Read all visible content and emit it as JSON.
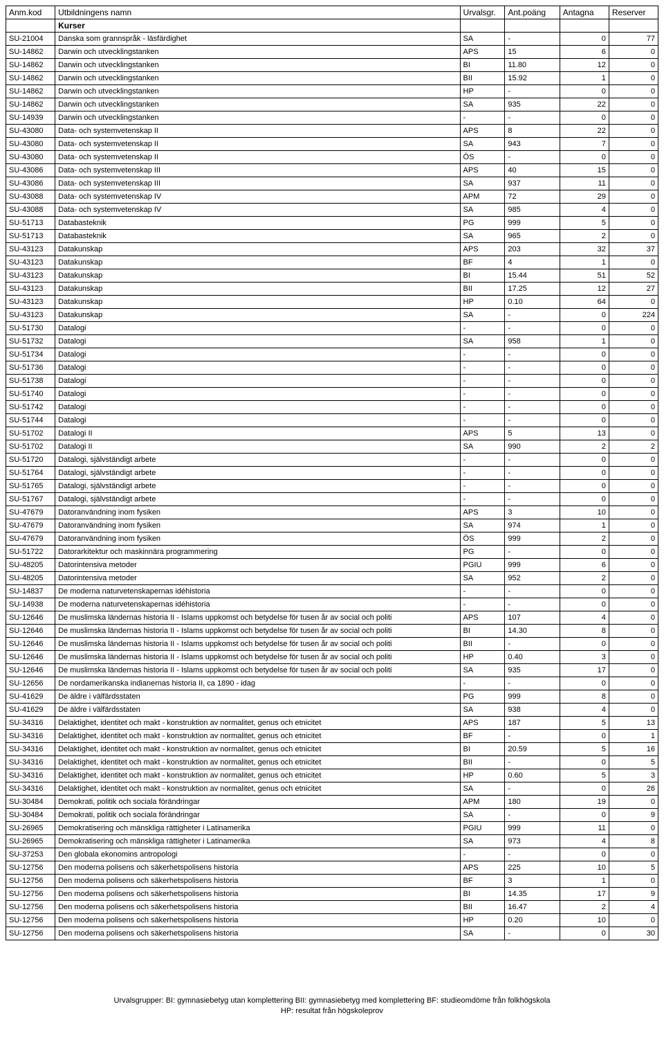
{
  "columns": {
    "kod": "Anm.kod",
    "namn": "Utbildningens namn",
    "urv": "Urvalsgr.",
    "poang": "Ant.poäng",
    "ant": "Antagna",
    "res": "Reserver"
  },
  "section": "Kurser",
  "footer": {
    "line1": "Urvalsgrupper:  BI: gymnasiebetyg utan komplettering   BII: gymnasiebetyg med komplettering   BF: studieomdöme från folkhögskola",
    "line2": "HP: resultat från högskoleprov"
  },
  "rows": [
    {
      "kod": "SU-21004",
      "namn": "Danska som grannspråk - läsfärdighet",
      "urv": "SA",
      "poang": "-",
      "ant": "0",
      "res": "77"
    },
    {
      "kod": "SU-14862",
      "namn": "Darwin och utvecklingstanken",
      "urv": "APS",
      "poang": "15",
      "ant": "6",
      "res": "0"
    },
    {
      "kod": "SU-14862",
      "namn": "Darwin och utvecklingstanken",
      "urv": "BI",
      "poang": "11.80",
      "ant": "12",
      "res": "0"
    },
    {
      "kod": "SU-14862",
      "namn": "Darwin och utvecklingstanken",
      "urv": "BII",
      "poang": "15.92",
      "ant": "1",
      "res": "0"
    },
    {
      "kod": "SU-14862",
      "namn": "Darwin och utvecklingstanken",
      "urv": "HP",
      "poang": "-",
      "ant": "0",
      "res": "0"
    },
    {
      "kod": "SU-14862",
      "namn": "Darwin och utvecklingstanken",
      "urv": "SA",
      "poang": "935",
      "ant": "22",
      "res": "0"
    },
    {
      "kod": "SU-14939",
      "namn": "Darwin och utvecklingstanken",
      "urv": "-",
      "poang": "-",
      "ant": "0",
      "res": "0"
    },
    {
      "kod": "SU-43080",
      "namn": "Data- och systemvetenskap II",
      "urv": "APS",
      "poang": "8",
      "ant": "22",
      "res": "0"
    },
    {
      "kod": "SU-43080",
      "namn": "Data- och systemvetenskap II",
      "urv": "SA",
      "poang": "943",
      "ant": "7",
      "res": "0"
    },
    {
      "kod": "SU-43080",
      "namn": "Data- och systemvetenskap II",
      "urv": "ÖS",
      "poang": "-",
      "ant": "0",
      "res": "0"
    },
    {
      "kod": "SU-43086",
      "namn": "Data- och systemvetenskap III",
      "urv": "APS",
      "poang": "40",
      "ant": "15",
      "res": "0"
    },
    {
      "kod": "SU-43086",
      "namn": "Data- och systemvetenskap III",
      "urv": "SA",
      "poang": "937",
      "ant": "11",
      "res": "0"
    },
    {
      "kod": "SU-43088",
      "namn": "Data- och systemvetenskap IV",
      "urv": "APM",
      "poang": "72",
      "ant": "29",
      "res": "0"
    },
    {
      "kod": "SU-43088",
      "namn": "Data- och systemvetenskap IV",
      "urv": "SA",
      "poang": "985",
      "ant": "4",
      "res": "0"
    },
    {
      "kod": "SU-51713",
      "namn": "Databasteknik",
      "urv": "PG",
      "poang": "999",
      "ant": "5",
      "res": "0"
    },
    {
      "kod": "SU-51713",
      "namn": "Databasteknik",
      "urv": "SA",
      "poang": "965",
      "ant": "2",
      "res": "0"
    },
    {
      "kod": "SU-43123",
      "namn": "Datakunskap",
      "urv": "APS",
      "poang": "203",
      "ant": "32",
      "res": "37"
    },
    {
      "kod": "SU-43123",
      "namn": "Datakunskap",
      "urv": "BF",
      "poang": "4",
      "ant": "1",
      "res": "0"
    },
    {
      "kod": "SU-43123",
      "namn": "Datakunskap",
      "urv": "BI",
      "poang": "15.44",
      "ant": "51",
      "res": "52"
    },
    {
      "kod": "SU-43123",
      "namn": "Datakunskap",
      "urv": "BII",
      "poang": "17.25",
      "ant": "12",
      "res": "27"
    },
    {
      "kod": "SU-43123",
      "namn": "Datakunskap",
      "urv": "HP",
      "poang": "0.10",
      "ant": "64",
      "res": "0"
    },
    {
      "kod": "SU-43123",
      "namn": "Datakunskap",
      "urv": "SA",
      "poang": "-",
      "ant": "0",
      "res": "224"
    },
    {
      "kod": "SU-51730",
      "namn": "Datalogi",
      "urv": "-",
      "poang": "-",
      "ant": "0",
      "res": "0"
    },
    {
      "kod": "SU-51732",
      "namn": "Datalogi",
      "urv": "SA",
      "poang": "958",
      "ant": "1",
      "res": "0"
    },
    {
      "kod": "SU-51734",
      "namn": "Datalogi",
      "urv": "-",
      "poang": "-",
      "ant": "0",
      "res": "0"
    },
    {
      "kod": "SU-51736",
      "namn": "Datalogi",
      "urv": "-",
      "poang": "-",
      "ant": "0",
      "res": "0"
    },
    {
      "kod": "SU-51738",
      "namn": "Datalogi",
      "urv": "-",
      "poang": "-",
      "ant": "0",
      "res": "0"
    },
    {
      "kod": "SU-51740",
      "namn": "Datalogi",
      "urv": "-",
      "poang": "-",
      "ant": "0",
      "res": "0"
    },
    {
      "kod": "SU-51742",
      "namn": "Datalogi",
      "urv": "-",
      "poang": "-",
      "ant": "0",
      "res": "0"
    },
    {
      "kod": "SU-51744",
      "namn": "Datalogi",
      "urv": "-",
      "poang": "-",
      "ant": "0",
      "res": "0"
    },
    {
      "kod": "SU-51702",
      "namn": "Datalogi II",
      "urv": "APS",
      "poang": "5",
      "ant": "13",
      "res": "0"
    },
    {
      "kod": "SU-51702",
      "namn": "Datalogi II",
      "urv": "SA",
      "poang": "990",
      "ant": "2",
      "res": "2"
    },
    {
      "kod": "SU-51720",
      "namn": "Datalogi, självständigt arbete",
      "urv": "-",
      "poang": "-",
      "ant": "0",
      "res": "0"
    },
    {
      "kod": "SU-51764",
      "namn": "Datalogi, självständigt arbete",
      "urv": "-",
      "poang": "-",
      "ant": "0",
      "res": "0"
    },
    {
      "kod": "SU-51765",
      "namn": "Datalogi, självständigt arbete",
      "urv": "-",
      "poang": "-",
      "ant": "0",
      "res": "0"
    },
    {
      "kod": "SU-51767",
      "namn": "Datalogi, självständigt arbete",
      "urv": "-",
      "poang": "-",
      "ant": "0",
      "res": "0"
    },
    {
      "kod": "SU-47679",
      "namn": "Datoranvändning inom fysiken",
      "urv": "APS",
      "poang": "3",
      "ant": "10",
      "res": "0"
    },
    {
      "kod": "SU-47679",
      "namn": "Datoranvändning inom fysiken",
      "urv": "SA",
      "poang": "974",
      "ant": "1",
      "res": "0"
    },
    {
      "kod": "SU-47679",
      "namn": "Datoranvändning inom fysiken",
      "urv": "ÖS",
      "poang": "999",
      "ant": "2",
      "res": "0"
    },
    {
      "kod": "SU-51722",
      "namn": "Datorarkitektur och maskinnära programmering",
      "urv": "PG",
      "poang": "-",
      "ant": "0",
      "res": "0"
    },
    {
      "kod": "SU-48205",
      "namn": "Datorintensiva metoder",
      "urv": "PGIU",
      "poang": "999",
      "ant": "6",
      "res": "0"
    },
    {
      "kod": "SU-48205",
      "namn": "Datorintensiva metoder",
      "urv": "SA",
      "poang": "952",
      "ant": "2",
      "res": "0"
    },
    {
      "kod": "SU-14837",
      "namn": "De moderna naturvetenskapernas idéhistoria",
      "urv": "-",
      "poang": "-",
      "ant": "0",
      "res": "0"
    },
    {
      "kod": "SU-14938",
      "namn": "De moderna naturvetenskapernas idéhistoria",
      "urv": "-",
      "poang": "-",
      "ant": "0",
      "res": "0"
    },
    {
      "kod": "SU-12646",
      "namn": "De muslimska ländernas historia II - Islams uppkomst och betydelse för tusen år av social och politi",
      "urv": "APS",
      "poang": "107",
      "ant": "4",
      "res": "0"
    },
    {
      "kod": "SU-12646",
      "namn": "De muslimska ländernas historia II - Islams uppkomst och betydelse för tusen år av social och politi",
      "urv": "BI",
      "poang": "14.30",
      "ant": "8",
      "res": "0"
    },
    {
      "kod": "SU-12646",
      "namn": "De muslimska ländernas historia II - Islams uppkomst och betydelse för tusen år av social och politi",
      "urv": "BII",
      "poang": "-",
      "ant": "0",
      "res": "0"
    },
    {
      "kod": "SU-12646",
      "namn": "De muslimska ländernas historia II - Islams uppkomst och betydelse för tusen år av social och politi",
      "urv": "HP",
      "poang": "0.40",
      "ant": "3",
      "res": "0"
    },
    {
      "kod": "SU-12646",
      "namn": "De muslimska ländernas historia II - Islams uppkomst och betydelse för tusen år av social och politi",
      "urv": "SA",
      "poang": "935",
      "ant": "17",
      "res": "0"
    },
    {
      "kod": "SU-12656",
      "namn": "De nordamerikanska indianernas historia II, ca 1890 - idag",
      "urv": "-",
      "poang": "-",
      "ant": "0",
      "res": "0"
    },
    {
      "kod": "SU-41629",
      "namn": "De äldre i välfärdsstaten",
      "urv": "PG",
      "poang": "999",
      "ant": "8",
      "res": "0"
    },
    {
      "kod": "SU-41629",
      "namn": "De äldre i välfärdsstaten",
      "urv": "SA",
      "poang": "938",
      "ant": "4",
      "res": "0"
    },
    {
      "kod": "SU-34316",
      "namn": "Delaktighet, identitet och makt - konstruktion av normalitet, genus och etnicitet",
      "urv": "APS",
      "poang": "187",
      "ant": "5",
      "res": "13"
    },
    {
      "kod": "SU-34316",
      "namn": "Delaktighet, identitet och makt - konstruktion av normalitet, genus och etnicitet",
      "urv": "BF",
      "poang": "-",
      "ant": "0",
      "res": "1"
    },
    {
      "kod": "SU-34316",
      "namn": "Delaktighet, identitet och makt - konstruktion av normalitet, genus och etnicitet",
      "urv": "BI",
      "poang": "20.59",
      "ant": "5",
      "res": "16"
    },
    {
      "kod": "SU-34316",
      "namn": "Delaktighet, identitet och makt - konstruktion av normalitet, genus och etnicitet",
      "urv": "BII",
      "poang": "-",
      "ant": "0",
      "res": "5"
    },
    {
      "kod": "SU-34316",
      "namn": "Delaktighet, identitet och makt - konstruktion av normalitet, genus och etnicitet",
      "urv": "HP",
      "poang": "0.60",
      "ant": "5",
      "res": "3"
    },
    {
      "kod": "SU-34316",
      "namn": "Delaktighet, identitet och makt - konstruktion av normalitet, genus och etnicitet",
      "urv": "SA",
      "poang": "-",
      "ant": "0",
      "res": "26"
    },
    {
      "kod": "SU-30484",
      "namn": "Demokrati, politik och sociala förändringar",
      "urv": "APM",
      "poang": "180",
      "ant": "19",
      "res": "0"
    },
    {
      "kod": "SU-30484",
      "namn": "Demokrati, politik och sociala förändringar",
      "urv": "SA",
      "poang": "-",
      "ant": "0",
      "res": "9"
    },
    {
      "kod": "SU-26965",
      "namn": "Demokratisering och mänskliga rättigheter i Latinamerika",
      "urv": "PGIU",
      "poang": "999",
      "ant": "11",
      "res": "0"
    },
    {
      "kod": "SU-26965",
      "namn": "Demokratisering och mänskliga rättigheter i Latinamerika",
      "urv": "SA",
      "poang": "973",
      "ant": "4",
      "res": "8"
    },
    {
      "kod": "SU-37253",
      "namn": "Den globala ekonomins antropologi",
      "urv": "-",
      "poang": "-",
      "ant": "0",
      "res": "0"
    },
    {
      "kod": "SU-12756",
      "namn": "Den moderna polisens och säkerhetspolisens historia",
      "urv": "APS",
      "poang": "225",
      "ant": "10",
      "res": "5"
    },
    {
      "kod": "SU-12756",
      "namn": "Den moderna polisens och säkerhetspolisens historia",
      "urv": "BF",
      "poang": "3",
      "ant": "1",
      "res": "0"
    },
    {
      "kod": "SU-12756",
      "namn": "Den moderna polisens och säkerhetspolisens historia",
      "urv": "BI",
      "poang": "14.35",
      "ant": "17",
      "res": "9"
    },
    {
      "kod": "SU-12756",
      "namn": "Den moderna polisens och säkerhetspolisens historia",
      "urv": "BII",
      "poang": "16.47",
      "ant": "2",
      "res": "4"
    },
    {
      "kod": "SU-12756",
      "namn": "Den moderna polisens och säkerhetspolisens historia",
      "urv": "HP",
      "poang": "0.20",
      "ant": "10",
      "res": "0"
    },
    {
      "kod": "SU-12756",
      "namn": "Den moderna polisens och säkerhetspolisens historia",
      "urv": "SA",
      "poang": "-",
      "ant": "0",
      "res": "30"
    }
  ]
}
